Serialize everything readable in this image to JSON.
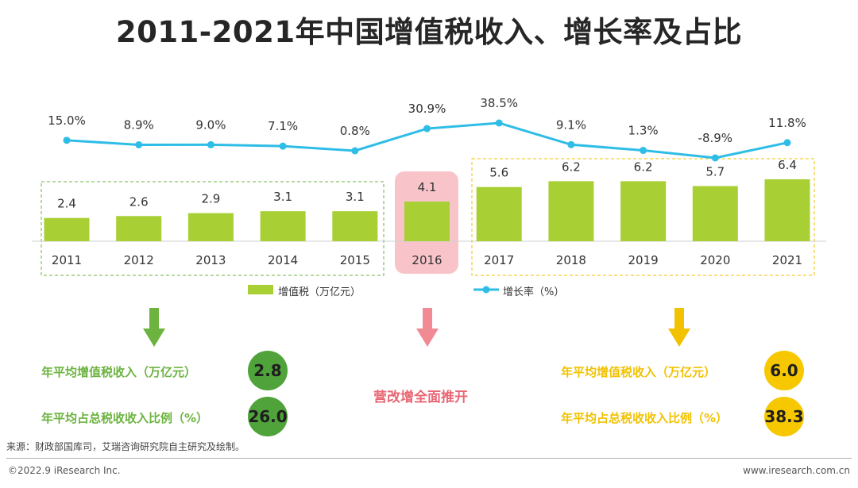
{
  "title": "2011-2021年中国增值税收入、增长率及占比",
  "colors": {
    "bar": "#a8cf34",
    "line": "#2ebde6",
    "green_group": "#6cb33f",
    "yellow_group": "#f2c200",
    "highlight": "#f28a95"
  },
  "chart_data": {
    "type": "bar",
    "categories": [
      "2011",
      "2012",
      "2013",
      "2014",
      "2015",
      "2016",
      "2017",
      "2018",
      "2019",
      "2020",
      "2021"
    ],
    "series": [
      {
        "name": "增值税（万亿元）",
        "type": "bar",
        "values": [
          2.4,
          2.6,
          2.9,
          3.1,
          3.1,
          4.1,
          5.6,
          6.2,
          6.2,
          5.7,
          6.4
        ]
      },
      {
        "name": "增长率（%）",
        "type": "line",
        "values": [
          15.0,
          8.9,
          9.0,
          7.1,
          0.8,
          30.9,
          38.5,
          9.1,
          1.3,
          -8.9,
          11.8
        ]
      }
    ],
    "bar_labels": [
      "2.4",
      "2.6",
      "2.9",
      "3.1",
      "3.1",
      "4.1",
      "5.6",
      "6.2",
      "6.2",
      "5.7",
      "6.4"
    ],
    "line_labels": [
      "15.0%",
      "8.9%",
      "9.0%",
      "7.1%",
      "0.8%",
      "30.9%",
      "38.5%",
      "9.1%",
      "1.3%",
      "-8.9%",
      "11.8%"
    ],
    "legend": "bottom"
  },
  "legend": {
    "bar": "增值税（万亿元）",
    "line": "增长率（%）"
  },
  "summary": {
    "left": {
      "avg_income_label": "年平均增值税收入（万亿元）",
      "avg_income_value": "2.8",
      "avg_ratio_label": "年平均占总税收收入比例（%）",
      "avg_ratio_value": "26.0"
    },
    "middle": {
      "label": "营改增全面推开"
    },
    "right": {
      "avg_income_label": "年平均增值税收入（万亿元）",
      "avg_income_value": "6.0",
      "avg_ratio_label": "年平均占总税收收入比例（%）",
      "avg_ratio_value": "38.3"
    }
  },
  "source": "来源：财政部国库司，艾瑞咨询研究院自主研究及绘制。",
  "footer": {
    "copyright": "©2022.9 iResearch Inc.",
    "website": "www.iresearch.com.cn"
  }
}
